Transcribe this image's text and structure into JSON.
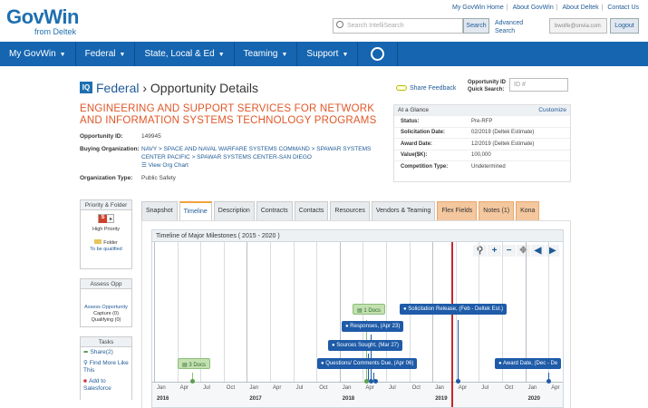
{
  "header": {
    "logo_main": "GovWin",
    "logo_sub": "from Deltek",
    "top_links": [
      "My GovWin Home",
      "About GovWin",
      "About Deltek",
      "Contact Us"
    ],
    "search_placeholder": "Search IntelliSearch",
    "search_button": "Search",
    "advanced_search": "Advanced Search",
    "user_email": "bwolfe@onvia.com",
    "logout": "Logout"
  },
  "nav": {
    "items": [
      "My GovWin",
      "Federal",
      "State, Local & Ed",
      "Teaming",
      "Support"
    ]
  },
  "page": {
    "section": "Federal",
    "title": "Opportunity Details",
    "share_feedback": "Share Feedback",
    "opp_id_label": "Opportunity ID Quick Search:",
    "opp_id_placeholder": "ID #",
    "opportunity_name": "ENGINEERING AND SUPPORT SERVICES FOR NETWORK AND INFORMATION SYSTEMS TECHNOLOGY PROGRAMS"
  },
  "details": {
    "opp_id_label": "Opportunity ID:",
    "opp_id": "149945",
    "buying_org_label": "Buying Organization:",
    "buying_org": "NAVY > SPACE AND NAVAL WARFARE SYSTEMS COMMAND > SPAWAR SYSTEMS CENTER PACIFIC > SPAWAR SYSTEMS CENTER-SAN DIEGO",
    "view_org_chart": "View Org Chart",
    "org_type_label": "Organization Type:",
    "org_type": "Public Safety"
  },
  "glance": {
    "title": "At a Glance",
    "customize": "Customize",
    "rows": [
      {
        "label": "Status:",
        "value": "Pre-RFP"
      },
      {
        "label": "Solicitation Date:",
        "value": "02/2019 (Deltek Estimate)"
      },
      {
        "label": "Award Date:",
        "value": "12/2019 (Deltek Estimate)"
      },
      {
        "label": "Value($K):",
        "value": "100,000"
      },
      {
        "label": "Competition Type:",
        "value": "Undetermined"
      }
    ]
  },
  "sidebar": {
    "priority_title": "Priority & Folder",
    "priority_letter": "S",
    "priority_label": "High Priority",
    "folder_label": "Folder",
    "folder_link": "To be qualified",
    "assess_title": "Assess Opp",
    "assess_link": "Assess Opportunity",
    "capture": "Capture (0)",
    "qualifying": "Qualifying (0)",
    "tasks_title": "Tasks",
    "task_share": "Share(2)",
    "task_find": "Find More Like This",
    "task_add": "Add to Salesforce"
  },
  "tabs": [
    {
      "label": "Snapshot",
      "style": "normal"
    },
    {
      "label": "Timeline",
      "style": "active"
    },
    {
      "label": "Description",
      "style": "normal"
    },
    {
      "label": "Contracts",
      "style": "normal"
    },
    {
      "label": "Contacts",
      "style": "normal"
    },
    {
      "label": "Resources",
      "style": "normal"
    },
    {
      "label": "Vendors & Teaming",
      "style": "normal"
    },
    {
      "label": "Flex Fields",
      "style": "orange"
    },
    {
      "label": "Notes (1)",
      "style": "orange"
    },
    {
      "label": "Kona",
      "style": "orange"
    }
  ],
  "timeline": {
    "title": "Timeline of Major Milestones ( 2015 - 2020 )",
    "months": [
      "Jan",
      "Apr",
      "Jul",
      "Oct",
      "Jan",
      "Apr",
      "Jul",
      "Oct",
      "Jan",
      "Apr",
      "Jul",
      "Oct",
      "Jan",
      "Apr",
      "Jul",
      "Oct",
      "Jan",
      "Apr"
    ],
    "years": [
      "2016",
      "2017",
      "2018",
      "2019",
      "2020"
    ],
    "milestones": [
      {
        "label": "Solicitation Release, (Feb - Deltek Est.)",
        "type": "blue"
      },
      {
        "label": "Responses, (Apr 23)",
        "type": "blue"
      },
      {
        "label": "Sources Sought, (Mar 27)",
        "type": "blue"
      },
      {
        "label": "Questions/ Comments Due, (Apr 06)",
        "type": "blue"
      },
      {
        "label": "Award Date, (Dec - De",
        "type": "blue"
      },
      {
        "label": "1 Docs",
        "type": "green"
      },
      {
        "label": "3 Docs",
        "type": "green"
      }
    ]
  },
  "colors": {
    "brand_blue": "#1565b0",
    "accent_orange": "#e0582a",
    "milestone_blue": "#1e5ba8",
    "today_red": "#c62828"
  }
}
